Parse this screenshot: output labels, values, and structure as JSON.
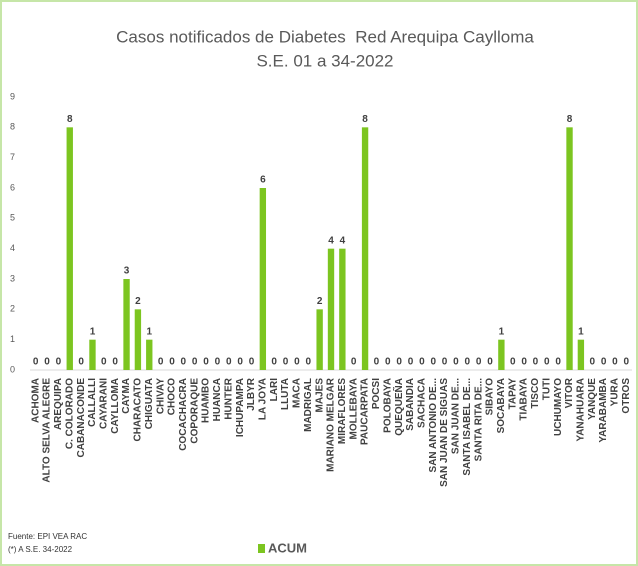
{
  "chart_data": {
    "type": "bar",
    "title": "Casos notificados de Diabetes  Red Arequipa Caylloma",
    "subtitle": "S.E. 01 a 34-2022",
    "categories": [
      "ACHOMA",
      "ALTO SELVA ALEGRE",
      "AREQUIPA",
      "C. COLORADO",
      "CABANACONDE",
      "CALLALLI",
      "CAYARANI",
      "CAYLLOMA",
      "CAYMA",
      "CHARACATO",
      "CHIGUATA",
      "CHIVAY",
      "CHOCO",
      "COCACHACRA",
      "COPORAQUE",
      "HUAMBO",
      "HUANCA",
      "HUNTER",
      "ICHUPAMPA",
      "JLBYR",
      "LA JOYA",
      "LARI",
      "LLUTA",
      "MACA",
      "MADRIGAL",
      "MAJES",
      "MARIANO MELGAR",
      "MIRAFLORES",
      "MOLLEBAYA",
      "PAUCARPATA",
      "POCSI",
      "POLOBAYA",
      "QUEQUEÑA",
      "SABANDIA",
      "SACHACA",
      "SAN ANTONIO DE...",
      "SAN JUAN DE SIGUAS",
      "SAN JUAN DE...",
      "SANTA ISABEL DE...",
      "SANTA RITA DE...",
      "SIBAYO",
      "SOCABAYA",
      "TAPAY",
      "TIABAYA",
      "TISCO",
      "TUTI",
      "UCHUMAYO",
      "VITOR",
      "YANAHUARA",
      "YANQUE",
      "YARABAMBA",
      "YURA",
      "OTROS"
    ],
    "series": [
      {
        "name": "ACUM",
        "color": "#7cc520",
        "values": [
          0,
          0,
          0,
          8,
          0,
          1,
          0,
          0,
          3,
          2,
          1,
          0,
          0,
          0,
          0,
          0,
          0,
          0,
          0,
          0,
          6,
          0,
          0,
          0,
          0,
          2,
          4,
          4,
          0,
          8,
          0,
          0,
          0,
          0,
          0,
          0,
          0,
          0,
          0,
          0,
          0,
          1,
          0,
          0,
          0,
          0,
          0,
          8,
          1,
          0,
          0,
          0,
          0
        ]
      }
    ],
    "ylim": [
      0,
      9
    ],
    "yticks": [
      0,
      1,
      2,
      3,
      4,
      5,
      6,
      7,
      8,
      9
    ],
    "legend": "bottom",
    "source": "Fuente: EPI VEA RAC",
    "note": "(*) A S.E. 34-2022"
  }
}
